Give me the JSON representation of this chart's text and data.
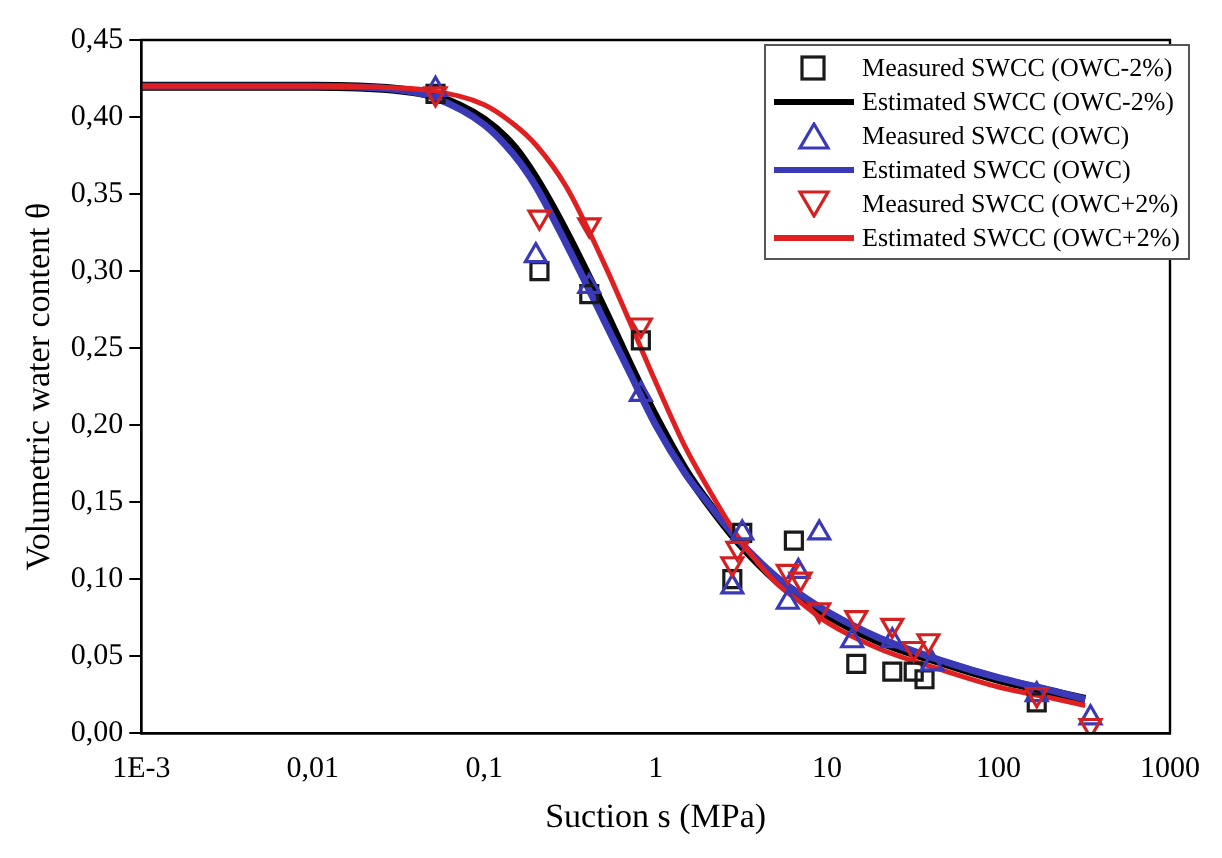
{
  "chart_data": {
    "type": "scatter",
    "xlabel": "Suction s (MPa)",
    "ylabel": "Volumetric water content θ",
    "log": "x",
    "xlim": [
      0.001,
      1000
    ],
    "ylim": [
      0,
      0.45
    ],
    "xticks": [
      {
        "value": 0.001,
        "label": "1E-3"
      },
      {
        "value": 0.01,
        "label": "0,01"
      },
      {
        "value": 0.1,
        "label": "0,1"
      },
      1,
      10,
      100,
      1000
    ],
    "yticks": [
      {
        "value": 0,
        "label": "0,00"
      },
      {
        "value": 0.05,
        "label": "0,05"
      },
      {
        "value": 0.1,
        "label": "0,10"
      },
      {
        "value": 0.15,
        "label": "0,15"
      },
      {
        "value": 0.2,
        "label": "0,20"
      },
      {
        "value": 0.25,
        "label": "0,25"
      },
      {
        "value": 0.3,
        "label": "0,30"
      },
      {
        "value": 0.35,
        "label": "0,35"
      },
      {
        "value": 0.4,
        "label": "0,40"
      },
      {
        "value": 0.45,
        "label": "0,45"
      }
    ],
    "legend": "top right",
    "grid": false,
    "series": [
      {
        "name": "Measured SWCC (OWC-2%)",
        "marker": "square",
        "color": "#1a1a1a",
        "x": [
          0.052,
          0.21,
          0.41,
          0.82,
          3.2,
          2.8,
          6.4,
          14.8,
          24,
          32,
          37,
          167
        ],
        "values": [
          0.415,
          0.3,
          0.285,
          0.255,
          0.13,
          0.1,
          0.125,
          0.045,
          0.04,
          0.04,
          0.035,
          0.02
        ]
      },
      {
        "name": "Estimated SWCC (OWC-2%)",
        "type": "line",
        "marker": "none",
        "color": "#000000",
        "x": [
          0.001,
          0.003,
          0.01,
          0.03,
          0.05,
          0.1,
          0.15,
          0.2,
          0.3,
          0.5,
          0.7,
          1,
          1.5,
          2,
          3,
          5,
          7,
          10,
          20,
          50,
          100,
          200,
          320
        ],
        "values": [
          0.42,
          0.42,
          0.42,
          0.418,
          0.414,
          0.398,
          0.38,
          0.36,
          0.325,
          0.275,
          0.24,
          0.205,
          0.17,
          0.15,
          0.125,
          0.1,
          0.088,
          0.077,
          0.06,
          0.045,
          0.035,
          0.027,
          0.022
        ]
      },
      {
        "name": "Measured SWCC (OWC)",
        "marker": "triangle",
        "color": "#3a3ab8",
        "x": [
          0.052,
          0.2,
          0.41,
          0.82,
          3.2,
          2.8,
          6.8,
          5.9,
          9,
          14,
          24,
          41,
          167,
          344
        ],
        "values": [
          0.418,
          0.31,
          0.29,
          0.22,
          0.13,
          0.095,
          0.105,
          0.085,
          0.13,
          0.06,
          0.06,
          0.045,
          0.025,
          0.01
        ]
      },
      {
        "name": "Estimated SWCC (OWC)",
        "type": "line",
        "marker": "none",
        "color": "#3a3ab8",
        "x": [
          0.001,
          0.003,
          0.01,
          0.03,
          0.05,
          0.1,
          0.15,
          0.2,
          0.3,
          0.5,
          0.7,
          1,
          1.5,
          2,
          3,
          5,
          7,
          10,
          20,
          50,
          100,
          200,
          320
        ],
        "values": [
          0.42,
          0.42,
          0.42,
          0.418,
          0.413,
          0.395,
          0.375,
          0.355,
          0.318,
          0.268,
          0.235,
          0.2,
          0.168,
          0.15,
          0.126,
          0.102,
          0.09,
          0.079,
          0.062,
          0.046,
          0.036,
          0.028,
          0.022
        ]
      },
      {
        "name": "Measured SWCC (OWC+2%)",
        "marker": "triangle-down",
        "color": "#d42020",
        "x": [
          0.052,
          0.21,
          0.41,
          0.82,
          3,
          2.8,
          5.9,
          7,
          9,
          14.8,
          24,
          32,
          39,
          167,
          344
        ],
        "values": [
          0.415,
          0.335,
          0.33,
          0.265,
          0.12,
          0.11,
          0.105,
          0.1,
          0.08,
          0.075,
          0.07,
          0.055,
          0.06,
          0.025,
          0.005
        ]
      },
      {
        "name": "Estimated SWCC (OWC+2%)",
        "type": "line",
        "marker": "none",
        "color": "#e02020",
        "x": [
          0.001,
          0.003,
          0.01,
          0.03,
          0.05,
          0.1,
          0.15,
          0.2,
          0.3,
          0.5,
          0.7,
          1,
          1.5,
          2,
          3,
          5,
          7,
          10,
          20,
          50,
          100,
          200,
          320
        ],
        "values": [
          0.42,
          0.42,
          0.42,
          0.419,
          0.417,
          0.408,
          0.395,
          0.382,
          0.355,
          0.305,
          0.268,
          0.228,
          0.185,
          0.16,
          0.128,
          0.098,
          0.085,
          0.072,
          0.055,
          0.04,
          0.03,
          0.023,
          0.018
        ]
      }
    ]
  }
}
